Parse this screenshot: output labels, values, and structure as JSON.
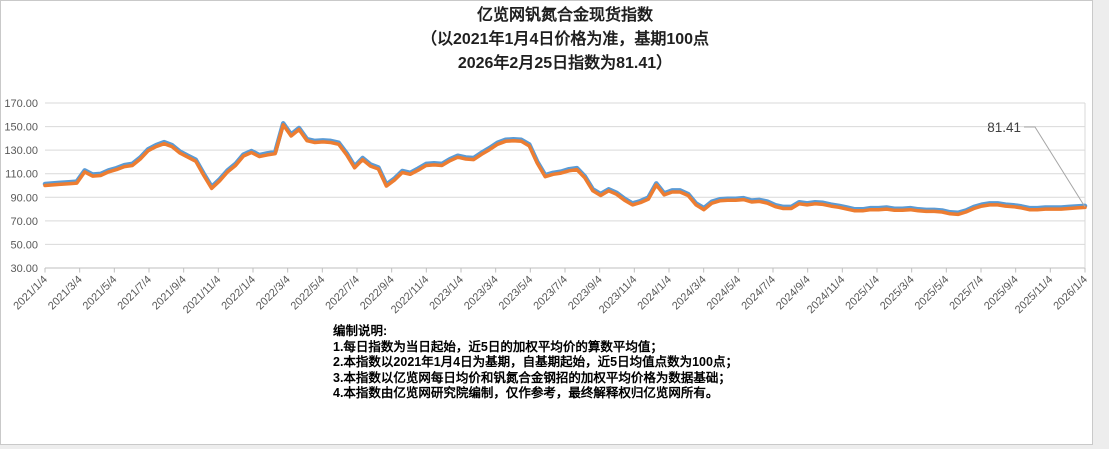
{
  "frame": {
    "background": "#ffffff",
    "outer_background": "#ededed",
    "border_color": "#c9c9c9"
  },
  "title": {
    "line1": "亿览网钒氮合金现货指数",
    "line2": "（以2021年1月4日价格为准，基期100点",
    "line3": "2026年2月25日指数为81.41）"
  },
  "annotation": {
    "label": "81.41"
  },
  "notes": {
    "heading": "编制说明:",
    "items": [
      "1.每日指数为当日起始，近5日的加权平均价的算数平均值；",
      "2.本指数以2021年1月4日为基期，自基期起始，近5日均值点数为100点；",
      "3.本指数以亿览网每日均价和钒氮合金钢招的加权平均价格为数据基础；",
      "4.本指数由亿览网研究院编制，仅作参考，最终解释权归亿览网所有。"
    ]
  },
  "chart_data": {
    "type": "line",
    "title": "亿览网钒氮合金现货指数",
    "subtitle": "以2021年1月4日价格为准，基期100点，2026年2月25日指数为81.41",
    "x_start": "2021/1/4",
    "x_end": "2026/2/25",
    "final_value": 81.41,
    "base_value": 100,
    "ylim": [
      30,
      170
    ],
    "y_tick_labels": [
      "170.00",
      "150.00",
      "130.00",
      "110.00",
      "90.00",
      "70.00",
      "50.00",
      "30.00"
    ],
    "y_tick_values": [
      170,
      150,
      130,
      110,
      90,
      70,
      50,
      30
    ],
    "x_labels": [
      "2021/1/4",
      "2021/3/4",
      "2021/5/4",
      "2021/7/4",
      "2021/9/4",
      "2021/11/4",
      "2022/1/4",
      "2022/3/4",
      "2022/5/4",
      "2022/7/4",
      "2022/9/4",
      "2022/11/4",
      "2023/1/4",
      "2023/3/4",
      "2023/5/4",
      "2023/7/4",
      "2023/9/4",
      "2023/11/4",
      "2024/1/4",
      "2024/3/4",
      "2024/5/4",
      "2024/7/4",
      "2024/9/4",
      "2024/11/4",
      "2025/1/4",
      "2025/3/4",
      "2025/5/4",
      "2025/7/4",
      "2025/9/4",
      "2025/11/4",
      "2026/1/4"
    ],
    "gridlines": "horizontal",
    "legend": "none",
    "series": [
      {
        "name": "spot-index-orange",
        "color": "#ED7D31",
        "values": [
          100,
          100.5,
          101,
          101.5,
          102,
          111.5,
          108,
          108.5,
          111.5,
          113.5,
          116,
          117,
          122.5,
          129.5,
          133,
          135.5,
          133,
          127.5,
          124,
          120.5,
          108.5,
          97.5,
          104,
          111.5,
          117,
          125,
          128,
          124.5,
          126,
          127,
          151.5,
          142,
          147.5,
          138,
          136.5,
          137,
          136.5,
          135,
          126,
          115,
          122,
          116.5,
          114,
          99.5,
          104.5,
          111,
          109.5,
          113,
          117,
          117.5,
          117,
          121,
          124,
          122.5,
          122,
          126.5,
          130.5,
          135,
          137.5,
          138,
          137.5,
          133.5,
          119,
          107.5,
          109.5,
          110.5,
          112.5,
          113.5,
          106.5,
          95.5,
          91.5,
          95.5,
          92.5,
          87.5,
          83.5,
          85.5,
          88.5,
          100.5,
          92,
          94.5,
          94.5,
          91.5,
          83.5,
          79.5,
          85,
          87,
          87.5,
          87.5,
          88,
          86,
          86.5,
          85,
          82,
          80.5,
          80.5,
          84.5,
          83.5,
          84.5,
          84,
          82.5,
          81.5,
          80,
          78.5,
          78.5,
          79.5,
          79.5,
          80,
          79,
          79,
          79.5,
          78.5,
          78,
          78,
          77.5,
          76,
          75.5,
          77.5,
          80.5,
          82.5,
          83.5,
          83.5,
          82.5,
          82,
          81,
          79.5,
          79.5,
          80,
          80,
          80,
          80.5,
          81,
          81.41
        ]
      },
      {
        "name": "spot-index-blue-underlay",
        "color": "#5B9BD5",
        "derived_from": "spot-index-orange",
        "offset": 1.3,
        "note": "nearly identical curve drawn just above/behind the orange line"
      }
    ]
  }
}
